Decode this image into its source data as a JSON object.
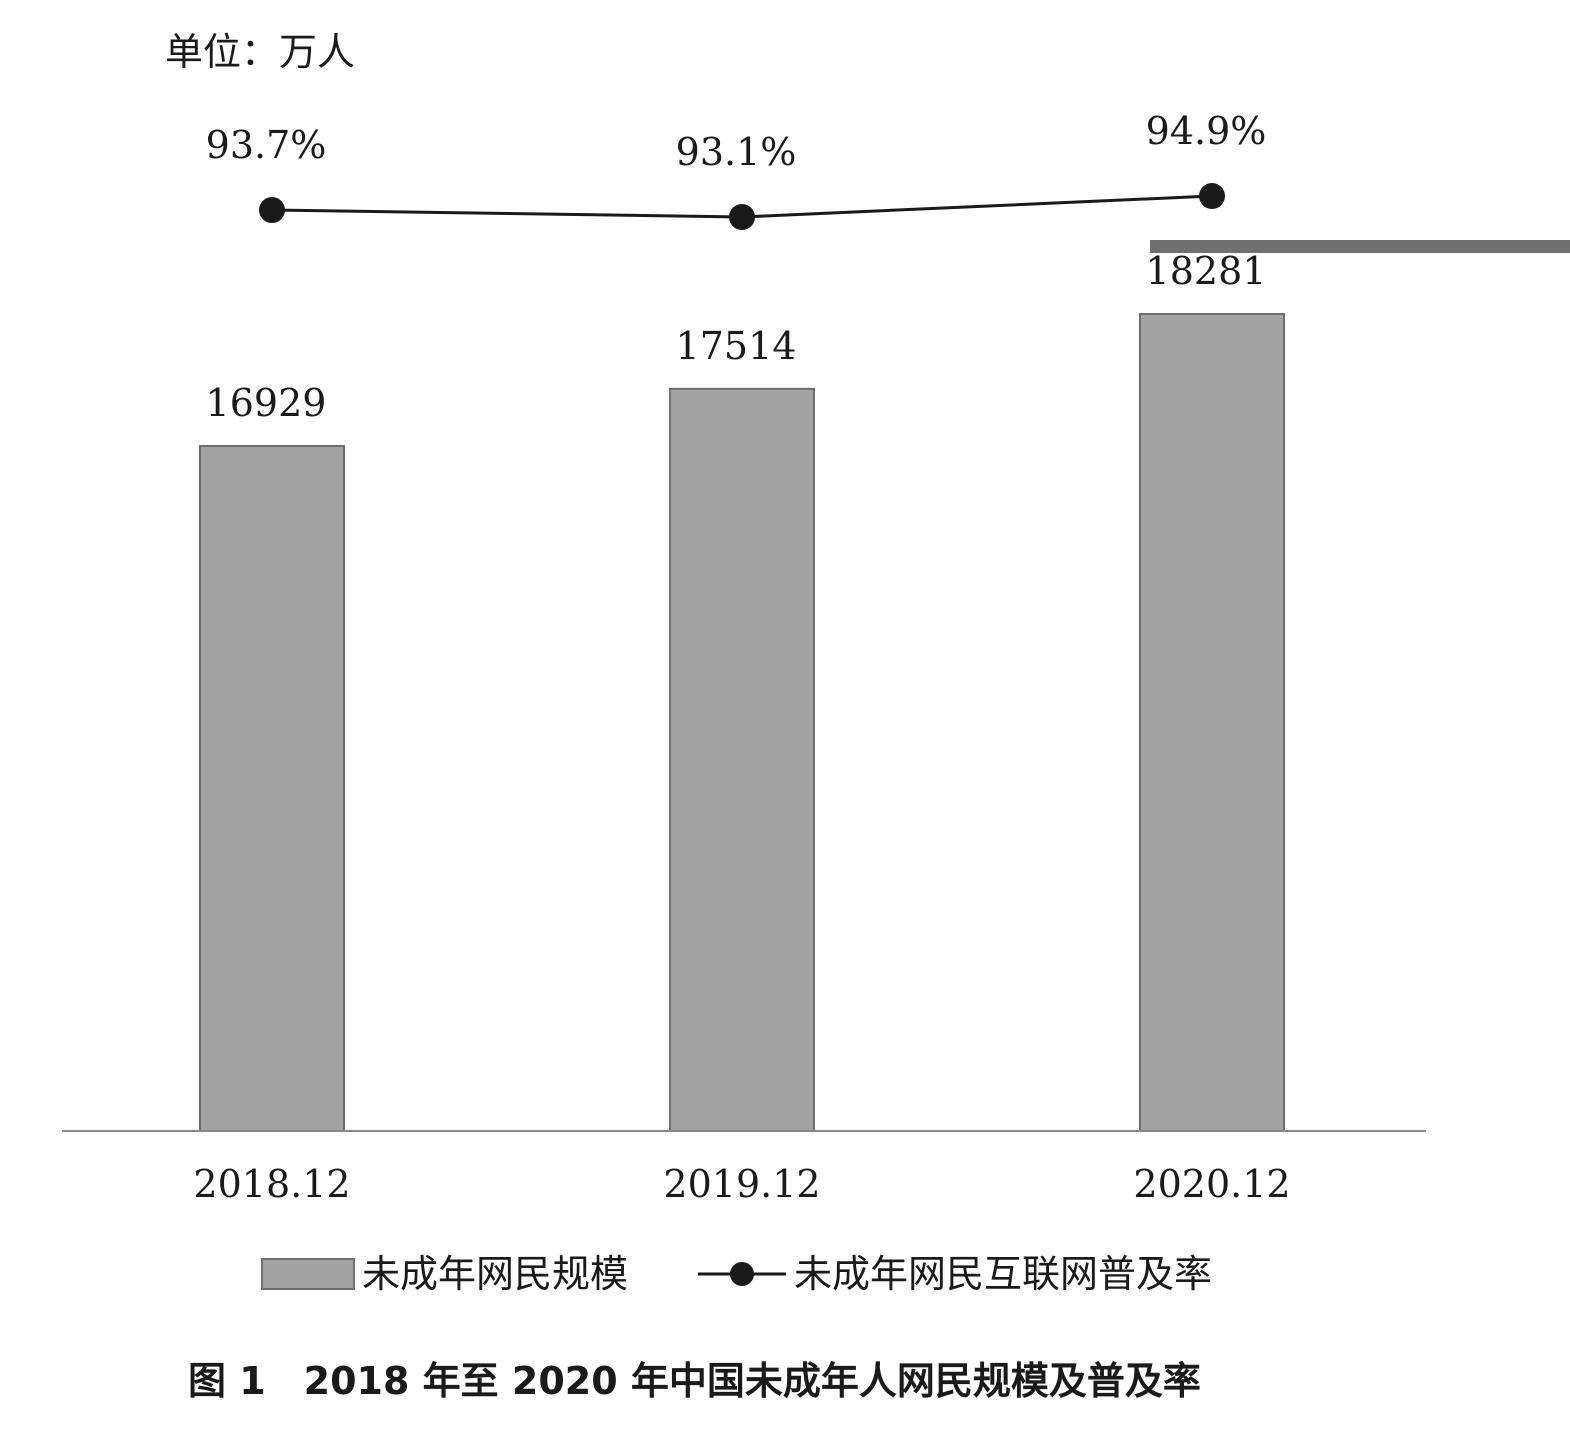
{
  "unit_label": "单位：万人",
  "caption": "图 1　2018 年至 2020 年中国未成年人网民规模及普及率",
  "legend": {
    "bar_label": "未成年网民规模",
    "line_label": "未成年网民互联网普及率"
  },
  "colors": {
    "bar": "#a3a3a3",
    "bar_stroke": "#6e6e6e",
    "line": "#1a1a1a",
    "axis": "#888888",
    "scanline": "#707070"
  },
  "chart_data": {
    "type": "bar",
    "categories": [
      "2018.12",
      "2019.12",
      "2020.12"
    ],
    "series": [
      {
        "name": "未成年网民规模",
        "type": "bar",
        "values": [
          16929,
          17514,
          18281
        ],
        "labels": [
          "16929",
          "17514",
          "18281"
        ]
      },
      {
        "name": "未成年网民互联网普及率",
        "type": "line",
        "values": [
          93.7,
          93.1,
          94.9
        ],
        "labels": [
          "93.7%",
          "93.1%",
          "94.9%"
        ]
      }
    ],
    "title": "",
    "xlabel": "",
    "ylabel": "单位：万人",
    "legend_position": "bottom",
    "grid": false
  }
}
